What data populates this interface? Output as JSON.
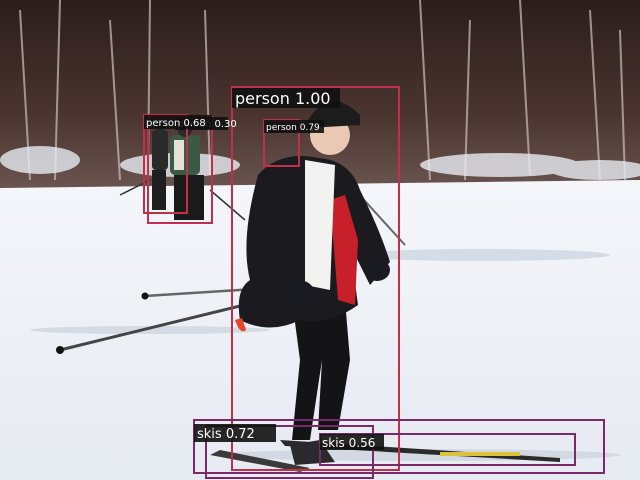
{
  "detections": [
    {
      "label": "person",
      "score": "1.00",
      "color": "#c0304a"
    },
    {
      "label": "person",
      "score": "0.79",
      "color": "#c0304a"
    },
    {
      "label": "person",
      "score": "0.68",
      "color": "#c0304a"
    },
    {
      "label": "person",
      "score": "0.30",
      "color": "#c0304a"
    },
    {
      "label": "skis",
      "score": "0.72",
      "color": "#7a2a68"
    },
    {
      "label": "skis",
      "score": "0.56",
      "color": "#7a2a68"
    }
  ],
  "colors": {
    "sky": "#d8dde6",
    "trees_dark": "#3a2a26",
    "snow": "#eef1f6",
    "snow_shadow": "#c9d1dd",
    "jacket": "#1b1b1f",
    "accent_red": "#c8202a",
    "label_bg": "#111111",
    "label_text": "#ffffff"
  }
}
